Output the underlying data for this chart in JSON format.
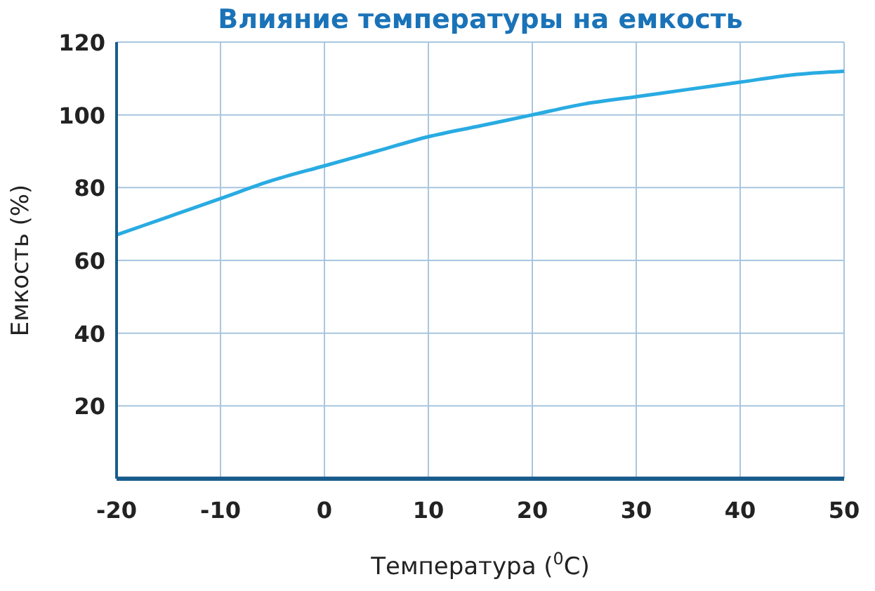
{
  "chart_data": {
    "type": "line",
    "title": "Влияние температуры на емкость",
    "xlabel": "Температура ($^{0}$C)",
    "ylabel": "Емкость (%)",
    "x": [
      -20,
      -15,
      -10,
      -5,
      0,
      5,
      10,
      15,
      20,
      25,
      30,
      35,
      40,
      45,
      50
    ],
    "series": [
      {
        "color": "#29abe2",
        "values": [
          67,
          72,
          77,
          82,
          86,
          90,
          94,
          97,
          100,
          103,
          105,
          107,
          109,
          111,
          112
        ]
      }
    ],
    "xlim": [
      -20,
      50
    ],
    "xticks": [
      -20,
      -10,
      0,
      10,
      20,
      30,
      40,
      50
    ],
    "ylim": [
      0,
      120
    ],
    "yticks": [
      20,
      40,
      60,
      80,
      100,
      120
    ],
    "grid": true,
    "marker": "none",
    "line_style": "solid"
  }
}
